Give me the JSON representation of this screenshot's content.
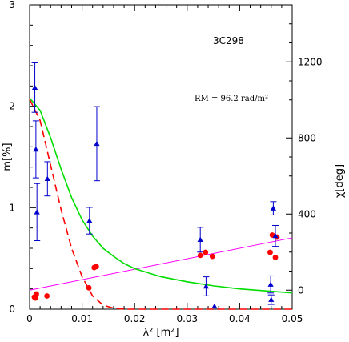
{
  "chart_data": {
    "type": "scatter",
    "title": "3C298",
    "annotation": "RM =  96.2 rad/m²",
    "xlabel": "λ² [m²]",
    "ylabel_left": "m[%]",
    "ylabel_right": "χ[deg]",
    "xlim": [
      0,
      0.05
    ],
    "ylim_left": [
      0,
      3
    ],
    "ylim_right": [
      -100,
      1500
    ],
    "x_ticks": [
      0,
      0.01,
      0.02,
      0.03,
      0.04,
      0.05
    ],
    "x_tick_labels": [
      "0",
      "0.01",
      "0.02",
      "0.03",
      "0.04",
      "0.05"
    ],
    "left_ticks": [
      0,
      1,
      2,
      3
    ],
    "left_tick_labels": [
      "0",
      "1",
      "2",
      "3"
    ],
    "right_ticks": [
      0,
      400,
      800,
      1200
    ],
    "right_tick_labels": [
      "0",
      "400",
      "800",
      "1200"
    ],
    "colors": {
      "pol_points": "#ff0000",
      "angle_points": "#0000cc",
      "rm_line": "#ff00ff",
      "green_model": "#00dd00",
      "red_model": "#ff0000"
    },
    "series": [
      {
        "axis": "left",
        "marker": "circle",
        "points": [
          [
            0.0009,
            0.12
          ],
          [
            0.0011,
            0.11
          ],
          [
            0.0013,
            0.15
          ],
          [
            0.0033,
            0.13
          ],
          [
            0.0113,
            0.21
          ],
          [
            0.0123,
            0.41
          ],
          [
            0.0127,
            0.42
          ],
          [
            0.0325,
            0.53
          ],
          [
            0.0335,
            0.56
          ],
          [
            0.0348,
            0.52
          ],
          [
            0.0458,
            0.56
          ],
          [
            0.0462,
            0.73
          ],
          [
            0.0468,
            0.51
          ],
          [
            0.0471,
            0.71
          ]
        ]
      },
      {
        "axis": "right",
        "marker": "triangle",
        "points": [
          [
            0.001,
            1065,
            130
          ],
          [
            0.0012,
            740,
            150
          ],
          [
            0.0014,
            410,
            150
          ],
          [
            0.0034,
            585,
            90
          ],
          [
            0.0114,
            365,
            70
          ],
          [
            0.0128,
            770,
            195
          ],
          [
            0.0325,
            265,
            65
          ],
          [
            0.0336,
            20,
            50
          ],
          [
            0.0352,
            -85,
            0
          ],
          [
            0.0459,
            30,
            45
          ],
          [
            0.046,
            -50,
            25
          ],
          [
            0.0464,
            430,
            35
          ],
          [
            0.0468,
            285,
            55
          ]
        ]
      },
      {
        "axis": "right",
        "type": "line",
        "x": [
          0,
          0.05
        ],
        "y": [
          0,
          275
        ]
      },
      {
        "axis": "left",
        "type": "line",
        "x": [
          0,
          0.002,
          0.004,
          0.006,
          0.008,
          0.01,
          0.012,
          0.014,
          0.016,
          0.018,
          0.02,
          0.025,
          0.03,
          0.035,
          0.04,
          0.045,
          0.05
        ],
        "y": [
          2.08,
          1.96,
          1.69,
          1.38,
          1.1,
          0.88,
          0.72,
          0.6,
          0.52,
          0.45,
          0.4,
          0.32,
          0.27,
          0.23,
          0.2,
          0.18,
          0.16
        ]
      },
      {
        "axis": "left",
        "type": "line",
        "dashed": true,
        "x": [
          0,
          0.002,
          0.004,
          0.006,
          0.008,
          0.01,
          0.012,
          0.014,
          0.016,
          0.018,
          0.02,
          0.025,
          0.05
        ],
        "y": [
          2.07,
          1.86,
          1.42,
          0.98,
          0.6,
          0.32,
          0.13,
          0.04,
          0.01,
          0.0,
          0.0,
          0.0,
          0.0
        ]
      }
    ]
  }
}
